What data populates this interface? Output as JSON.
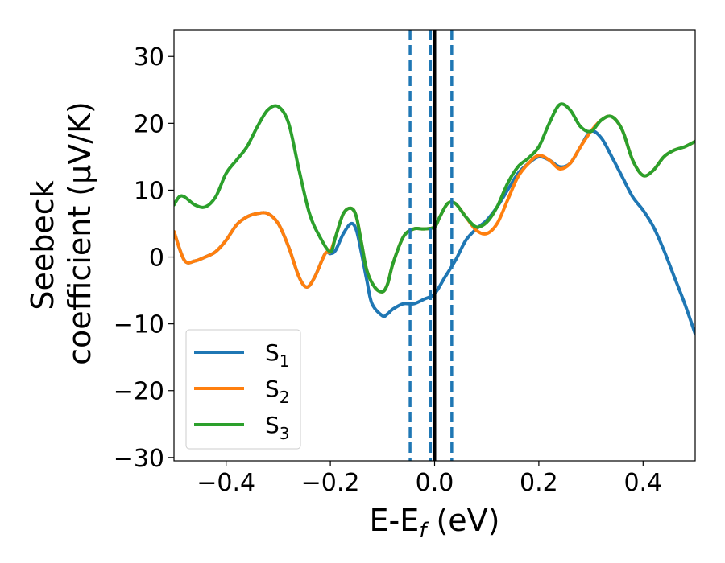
{
  "chart_data": {
    "type": "line",
    "xlabel": "E-E",
    "xlabel_sub": "f",
    "xlabel_unit": " (eV)",
    "ylabel_line1": "Seebeck",
    "ylabel_line2": "coefficient  (μV/K)",
    "xlim": [
      -0.5,
      0.5
    ],
    "ylim": [
      -30.5,
      34
    ],
    "xticks": [
      -0.4,
      -0.2,
      0.0,
      0.2,
      0.4
    ],
    "xtick_labels": [
      "−0.4",
      "−0.2",
      "0.0",
      "0.2",
      "0.4"
    ],
    "yticks": [
      -30,
      -20,
      -10,
      0,
      10,
      20,
      30
    ],
    "ytick_labels": [
      "−30",
      "−20",
      "−10",
      "0",
      "10",
      "20",
      "30"
    ],
    "grid": false,
    "legend_position": "bottom-left",
    "vlines": [
      {
        "x": 0.0,
        "style": "solid",
        "color": "#000000"
      },
      {
        "x": -0.047,
        "style": "dashed",
        "color": "#1f77b4"
      },
      {
        "x": -0.008,
        "style": "dashed",
        "color": "#1f77b4"
      },
      {
        "x": 0.033,
        "style": "dashed",
        "color": "#1f77b4"
      }
    ],
    "series": [
      {
        "name": "S",
        "name_sub": "1",
        "color": "#1f77b4",
        "points": [
          [
            -0.5,
            3.8
          ],
          [
            -0.48,
            -0.5
          ],
          [
            -0.46,
            -0.6
          ],
          [
            -0.44,
            0.0
          ],
          [
            -0.42,
            0.8
          ],
          [
            -0.4,
            2.5
          ],
          [
            -0.38,
            4.8
          ],
          [
            -0.36,
            6.0
          ],
          [
            -0.34,
            6.5
          ],
          [
            -0.32,
            6.5
          ],
          [
            -0.3,
            5.0
          ],
          [
            -0.28,
            1.5
          ],
          [
            -0.26,
            -3.0
          ],
          [
            -0.245,
            -4.5
          ],
          [
            -0.23,
            -3.0
          ],
          [
            -0.21,
            0.5
          ],
          [
            -0.2,
            0.5
          ],
          [
            -0.19,
            1.0
          ],
          [
            -0.175,
            3.5
          ],
          [
            -0.16,
            5.0
          ],
          [
            -0.15,
            4.0
          ],
          [
            -0.14,
            0.5
          ],
          [
            -0.13,
            -3.5
          ],
          [
            -0.12,
            -7.0
          ],
          [
            -0.1,
            -8.8
          ],
          [
            -0.09,
            -8.5
          ],
          [
            -0.08,
            -7.8
          ],
          [
            -0.06,
            -7.0
          ],
          [
            -0.04,
            -7.0
          ],
          [
            -0.02,
            -6.3
          ],
          [
            0.0,
            -5.5
          ],
          [
            0.02,
            -3.0
          ],
          [
            0.04,
            -0.5
          ],
          [
            0.06,
            2.5
          ],
          [
            0.08,
            4.2
          ],
          [
            0.1,
            5.5
          ],
          [
            0.12,
            7.5
          ],
          [
            0.14,
            10.0
          ],
          [
            0.16,
            12.5
          ],
          [
            0.18,
            14.0
          ],
          [
            0.2,
            15.0
          ],
          [
            0.22,
            14.5
          ],
          [
            0.24,
            13.5
          ],
          [
            0.26,
            14.0
          ],
          [
            0.28,
            16.5
          ],
          [
            0.3,
            18.8
          ],
          [
            0.32,
            17.8
          ],
          [
            0.34,
            15.0
          ],
          [
            0.36,
            12.0
          ],
          [
            0.38,
            9.0
          ],
          [
            0.4,
            7.0
          ],
          [
            0.42,
            4.5
          ],
          [
            0.44,
            1.0
          ],
          [
            0.46,
            -3.0
          ],
          [
            0.48,
            -7.0
          ],
          [
            0.5,
            -11.5
          ]
        ]
      },
      {
        "name": "S",
        "name_sub": "2",
        "color": "#ff7f0e",
        "points": [
          [
            -0.5,
            3.8
          ],
          [
            -0.48,
            -0.5
          ],
          [
            -0.46,
            -0.6
          ],
          [
            -0.44,
            0.0
          ],
          [
            -0.42,
            0.8
          ],
          [
            -0.4,
            2.5
          ],
          [
            -0.38,
            4.8
          ],
          [
            -0.36,
            6.0
          ],
          [
            -0.34,
            6.5
          ],
          [
            -0.32,
            6.5
          ],
          [
            -0.3,
            5.0
          ],
          [
            -0.28,
            1.5
          ],
          [
            -0.26,
            -3.0
          ],
          [
            -0.245,
            -4.5
          ],
          [
            -0.23,
            -3.0
          ],
          [
            -0.21,
            0.5
          ],
          [
            -0.2,
            0.8
          ],
          [
            -0.19,
            3.0
          ],
          [
            -0.175,
            6.5
          ],
          [
            -0.16,
            7.3
          ],
          [
            -0.15,
            6.0
          ],
          [
            -0.14,
            2.0
          ],
          [
            -0.13,
            -2.0
          ],
          [
            -0.115,
            -4.5
          ],
          [
            -0.1,
            -5.2
          ],
          [
            -0.09,
            -4.0
          ],
          [
            -0.08,
            -1.0
          ],
          [
            -0.06,
            3.0
          ],
          [
            -0.04,
            4.2
          ],
          [
            -0.02,
            4.2
          ],
          [
            0.0,
            4.5
          ],
          [
            0.01,
            6.0
          ],
          [
            0.025,
            8.0
          ],
          [
            0.04,
            8.0
          ],
          [
            0.06,
            6.0
          ],
          [
            0.08,
            4.0
          ],
          [
            0.1,
            3.5
          ],
          [
            0.12,
            5.0
          ],
          [
            0.14,
            8.5
          ],
          [
            0.16,
            12.0
          ],
          [
            0.18,
            14.0
          ],
          [
            0.2,
            15.2
          ],
          [
            0.22,
            14.5
          ],
          [
            0.24,
            13.2
          ],
          [
            0.26,
            14.0
          ],
          [
            0.28,
            16.5
          ],
          [
            0.3,
            18.8
          ],
          [
            0.32,
            20.5
          ],
          [
            0.34,
            21.0
          ],
          [
            0.36,
            19.0
          ],
          [
            0.38,
            14.5
          ],
          [
            0.4,
            12.2
          ],
          [
            0.42,
            13.0
          ],
          [
            0.44,
            15.0
          ],
          [
            0.46,
            16.0
          ],
          [
            0.48,
            16.5
          ],
          [
            0.5,
            17.3
          ]
        ]
      },
      {
        "name": "S",
        "name_sub": "3",
        "color": "#2ca02c",
        "points": [
          [
            -0.5,
            7.8
          ],
          [
            -0.49,
            9.0
          ],
          [
            -0.48,
            9.0
          ],
          [
            -0.46,
            7.8
          ],
          [
            -0.44,
            7.5
          ],
          [
            -0.42,
            9.0
          ],
          [
            -0.4,
            12.5
          ],
          [
            -0.38,
            14.5
          ],
          [
            -0.36,
            16.5
          ],
          [
            -0.34,
            19.5
          ],
          [
            -0.32,
            22.0
          ],
          [
            -0.3,
            22.5
          ],
          [
            -0.28,
            20.0
          ],
          [
            -0.26,
            13.0
          ],
          [
            -0.24,
            6.5
          ],
          [
            -0.22,
            3.0
          ],
          [
            -0.2,
            0.8
          ],
          [
            -0.19,
            3.0
          ],
          [
            -0.175,
            6.5
          ],
          [
            -0.16,
            7.3
          ],
          [
            -0.15,
            6.0
          ],
          [
            -0.14,
            2.0
          ],
          [
            -0.13,
            -2.0
          ],
          [
            -0.115,
            -4.5
          ],
          [
            -0.1,
            -5.2
          ],
          [
            -0.09,
            -4.0
          ],
          [
            -0.08,
            -1.0
          ],
          [
            -0.06,
            3.0
          ],
          [
            -0.04,
            4.2
          ],
          [
            -0.02,
            4.2
          ],
          [
            0.0,
            4.5
          ],
          [
            0.01,
            6.0
          ],
          [
            0.025,
            8.0
          ],
          [
            0.04,
            8.0
          ],
          [
            0.06,
            6.0
          ],
          [
            0.08,
            4.5
          ],
          [
            0.1,
            5.2
          ],
          [
            0.12,
            7.5
          ],
          [
            0.14,
            11.0
          ],
          [
            0.16,
            13.5
          ],
          [
            0.18,
            14.8
          ],
          [
            0.2,
            16.5
          ],
          [
            0.22,
            20.0
          ],
          [
            0.24,
            22.8
          ],
          [
            0.26,
            22.0
          ],
          [
            0.28,
            19.5
          ],
          [
            0.3,
            18.8
          ],
          [
            0.32,
            20.5
          ],
          [
            0.34,
            21.0
          ],
          [
            0.36,
            19.0
          ],
          [
            0.38,
            14.5
          ],
          [
            0.4,
            12.2
          ],
          [
            0.42,
            13.0
          ],
          [
            0.44,
            15.0
          ],
          [
            0.46,
            16.0
          ],
          [
            0.48,
            16.5
          ],
          [
            0.5,
            17.3
          ]
        ]
      }
    ]
  }
}
